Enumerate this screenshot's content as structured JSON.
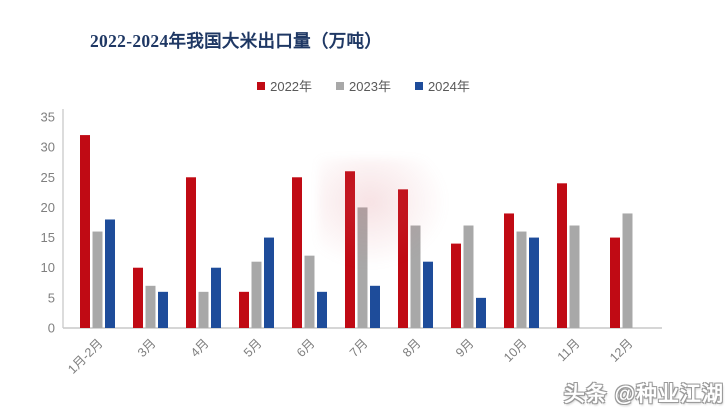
{
  "colors": {
    "title": "#1f3864",
    "axis_line": "#c9c9c9",
    "axis_text": "#7f7f7f",
    "legend_text": "#595959"
  },
  "watermark": {
    "text": "头条 @种业江湖"
  },
  "chart_data": {
    "type": "bar",
    "title": "2022-2024年我国大米出口量（万吨）",
    "xlabel": "",
    "ylabel": "",
    "ylim": [
      0,
      35
    ],
    "yticks": [
      0,
      5,
      10,
      15,
      20,
      25,
      30,
      35
    ],
    "grid": false,
    "legend_position": "top",
    "categories": [
      "1月-2月",
      "3月",
      "4月",
      "5月",
      "6月",
      "7月",
      "8月",
      "9月",
      "10月",
      "11月",
      "12月"
    ],
    "series": [
      {
        "name": "2022年",
        "color": "#c00a14",
        "values": [
          32,
          10,
          25,
          6,
          25,
          26,
          23,
          14,
          19,
          24,
          15
        ]
      },
      {
        "name": "2023年",
        "color": "#a8a8a8",
        "values": [
          16,
          7,
          6,
          11,
          12,
          20,
          17,
          17,
          16,
          17,
          19
        ]
      },
      {
        "name": "2024年",
        "color": "#1e4c9a",
        "values": [
          18,
          6,
          10,
          15,
          6,
          7,
          11,
          5,
          15,
          null,
          null
        ]
      }
    ]
  }
}
